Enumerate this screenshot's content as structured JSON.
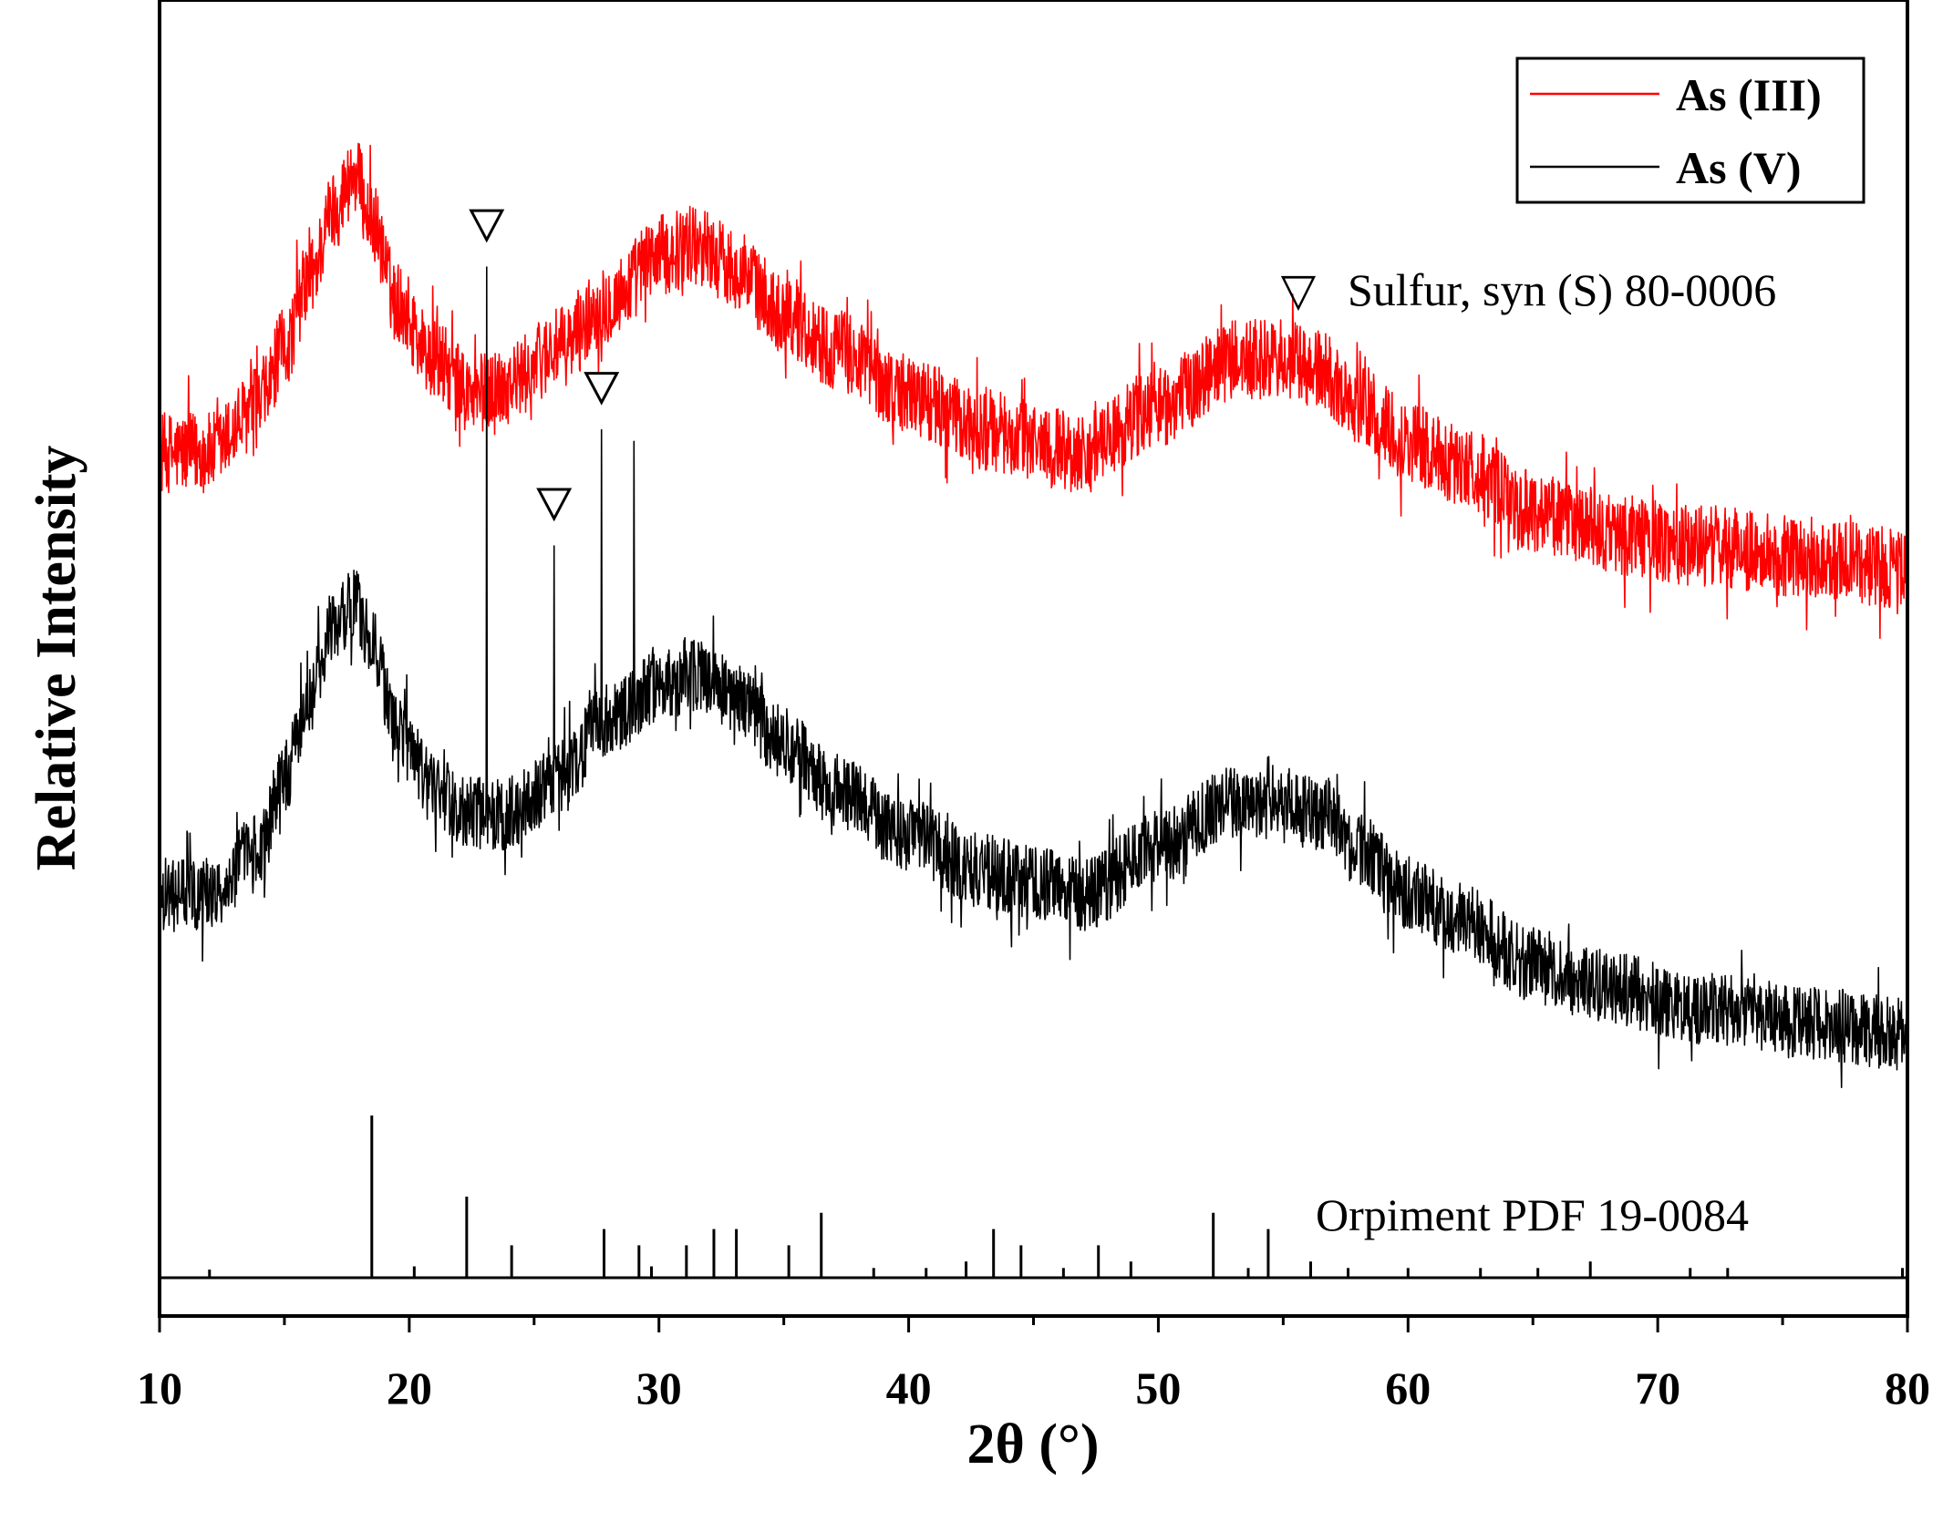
{
  "chart_data": {
    "type": "line",
    "title": "",
    "xlabel": "2θ (°)",
    "ylabel": "Relative Intensity",
    "xlim": [
      10,
      80
    ],
    "xticks": [
      "10",
      "20",
      "30",
      "40",
      "50",
      "60",
      "70",
      "80"
    ],
    "ylim": [
      0,
      1.1
    ],
    "grid": false,
    "legend": {
      "position": "top-right",
      "entries": [
        {
          "name": "As (III)",
          "color": "#ff0000"
        },
        {
          "name": "As (V)",
          "color": "#000000"
        }
      ]
    },
    "annotations": {
      "sulfur_label": "Sulfur, syn (S) 80-0006",
      "sulfur_marker": "▽",
      "orpiment_label": "Orpiment PDF 19-0084",
      "sulfur_marker_positions": [
        23.1,
        25.8,
        27.7
      ]
    },
    "series": [
      {
        "name": "As (III)",
        "color": "#ff0000",
        "x": [
          10,
          12,
          14,
          15,
          16,
          17,
          17.8,
          18.5,
          19.5,
          21,
          22.5,
          24,
          26,
          28,
          30,
          31.5,
          33,
          35,
          37,
          40,
          43,
          45,
          47,
          50,
          53,
          55,
          56.5,
          58,
          60,
          62,
          65,
          68,
          72,
          76,
          80
        ],
        "values": [
          0.71,
          0.71,
          0.75,
          0.8,
          0.86,
          0.92,
          0.95,
          0.91,
          0.84,
          0.79,
          0.76,
          0.77,
          0.8,
          0.84,
          0.88,
          0.89,
          0.87,
          0.83,
          0.8,
          0.76,
          0.73,
          0.72,
          0.71,
          0.75,
          0.79,
          0.79,
          0.78,
          0.75,
          0.72,
          0.7,
          0.66,
          0.64,
          0.63,
          0.62,
          0.61
        ],
        "noise": 0.035
      },
      {
        "name": "As (V)",
        "color": "#000000",
        "x": [
          10,
          12,
          14,
          15,
          16,
          17,
          17.8,
          18.5,
          19.5,
          21,
          22.5,
          24,
          26,
          28,
          30,
          31.5,
          33,
          35,
          37,
          40,
          43,
          45,
          47,
          50,
          53,
          55,
          56.5,
          58,
          60,
          62,
          65,
          68,
          72,
          76,
          80
        ],
        "values": [
          0.33,
          0.33,
          0.37,
          0.43,
          0.5,
          0.56,
          0.58,
          0.55,
          0.47,
          0.42,
          0.4,
          0.4,
          0.43,
          0.48,
          0.51,
          0.52,
          0.5,
          0.46,
          0.42,
          0.38,
          0.35,
          0.34,
          0.33,
          0.37,
          0.41,
          0.41,
          0.4,
          0.37,
          0.33,
          0.31,
          0.27,
          0.25,
          0.23,
          0.22,
          0.21
        ],
        "noise": 0.032,
        "sharp_peaks": [
          {
            "x": 23.1,
            "value": 0.87
          },
          {
            "x": 25.8,
            "value": 0.63
          },
          {
            "x": 27.7,
            "value": 0.73
          },
          {
            "x": 29.0,
            "value": 0.72
          }
        ]
      }
    ],
    "reference_pattern": {
      "name": "Orpiment PDF 19-0084",
      "positions": [
        12.0,
        18.5,
        20.2,
        22.3,
        24.1,
        27.8,
        29.2,
        29.7,
        31.1,
        32.2,
        33.1,
        35.2,
        36.5,
        38.6,
        40.7,
        42.3,
        43.4,
        44.5,
        46.2,
        47.6,
        48.9,
        52.2,
        53.6,
        54.4,
        56.1,
        57.6,
        60.0,
        62.9,
        65.2,
        67.3,
        71.3,
        72.8,
        79.8
      ],
      "intensities": [
        0.05,
        1.0,
        0.07,
        0.5,
        0.2,
        0.3,
        0.2,
        0.07,
        0.2,
        0.3,
        0.3,
        0.2,
        0.4,
        0.06,
        0.06,
        0.1,
        0.3,
        0.2,
        0.06,
        0.2,
        0.1,
        0.4,
        0.06,
        0.3,
        0.1,
        0.06,
        0.06,
        0.06,
        0.06,
        0.1,
        0.06,
        0.06,
        0.06
      ]
    }
  }
}
